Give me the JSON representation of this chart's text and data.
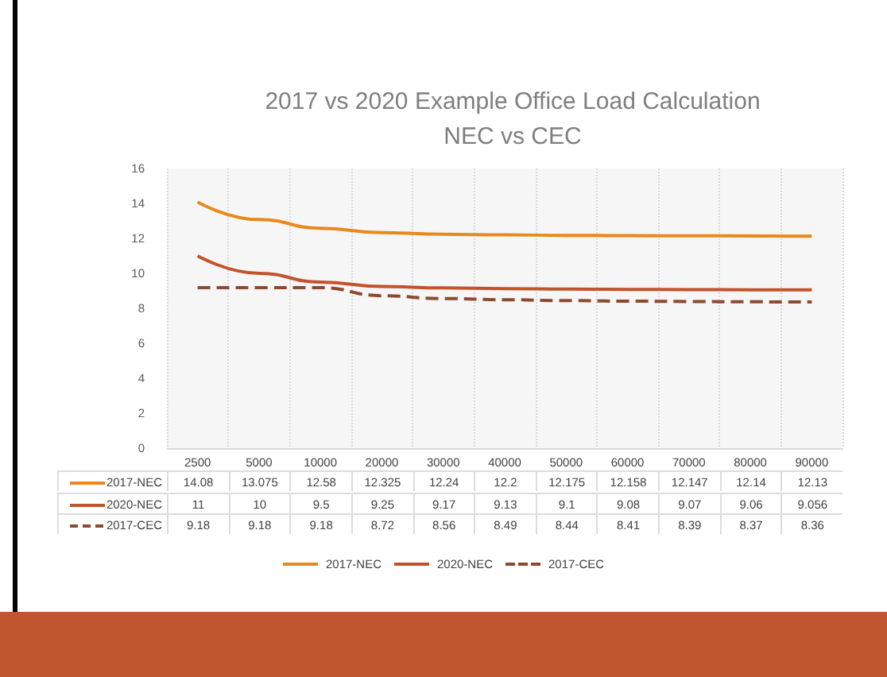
{
  "chart_data": {
    "type": "line",
    "title": "2017 vs 2020 Example Office Load Calculation\nNEC vs CEC",
    "categories": [
      "2500",
      "5000",
      "10000",
      "20000",
      "30000",
      "40000",
      "50000",
      "60000",
      "70000",
      "80000",
      "90000"
    ],
    "series": [
      {
        "name": "2017-NEC",
        "color": "#e8891a",
        "values": [
          14.08,
          13.075,
          12.58,
          12.325,
          12.24,
          12.2,
          12.175,
          12.158,
          12.147,
          12.14,
          12.13
        ]
      },
      {
        "name": "2020-NEC",
        "color": "#c2532b",
        "values": [
          11,
          10,
          9.5,
          9.25,
          9.17,
          9.13,
          9.1,
          9.08,
          9.07,
          9.06,
          9.056
        ]
      },
      {
        "name": "2017-CEC",
        "color": "#8e4a2f",
        "line_style": "dashed",
        "values": [
          9.18,
          9.18,
          9.18,
          8.72,
          8.56,
          8.49,
          8.44,
          8.41,
          8.39,
          8.37,
          8.36
        ]
      }
    ],
    "ylim": [
      0,
      16
    ],
    "yticks": [
      0,
      2,
      4,
      6,
      8,
      10,
      12,
      14,
      16
    ],
    "grid": "x",
    "legend": "bottom",
    "data_labels": true,
    "marker": "none"
  }
}
